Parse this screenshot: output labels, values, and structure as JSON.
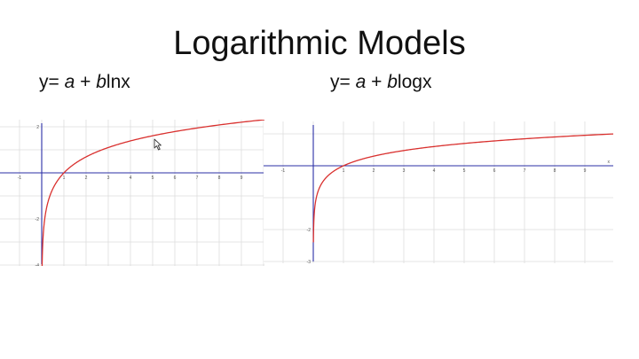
{
  "slide": {
    "title": "Logarithmic Models",
    "formula_left": {
      "prefix": "y= ",
      "a": "a",
      "mid": " + ",
      "b": "b",
      "func": "lnx"
    },
    "formula_right": {
      "prefix": "y= ",
      "a": "a",
      "mid": " + ",
      "b": "b",
      "func": "logx"
    }
  },
  "chart_data": [
    {
      "type": "line",
      "title": "",
      "xlabel": "",
      "ylabel": "",
      "xlim": [
        -1,
        10
      ],
      "ylim": [
        -4,
        2
      ],
      "grid": true,
      "x_ticks": [
        -1,
        1,
        2,
        3,
        4,
        5,
        6,
        7,
        8,
        9
      ],
      "y_ticks": [
        -4,
        -2,
        2
      ],
      "series": [
        {
          "function": "ln(x)",
          "color": "#d9302e"
        }
      ]
    },
    {
      "type": "line",
      "title": "",
      "xlabel": "",
      "ylabel": "",
      "xlim": [
        -1,
        10
      ],
      "ylim": [
        -3,
        2
      ],
      "grid": true,
      "x_ticks": [
        -1,
        1,
        2,
        3,
        4,
        5,
        6,
        7,
        8,
        9
      ],
      "y_ticks": [
        -3,
        -2,
        2
      ],
      "x_axis_label": "x",
      "series": [
        {
          "function": "log10(x)",
          "color": "#d9302e"
        }
      ]
    }
  ]
}
